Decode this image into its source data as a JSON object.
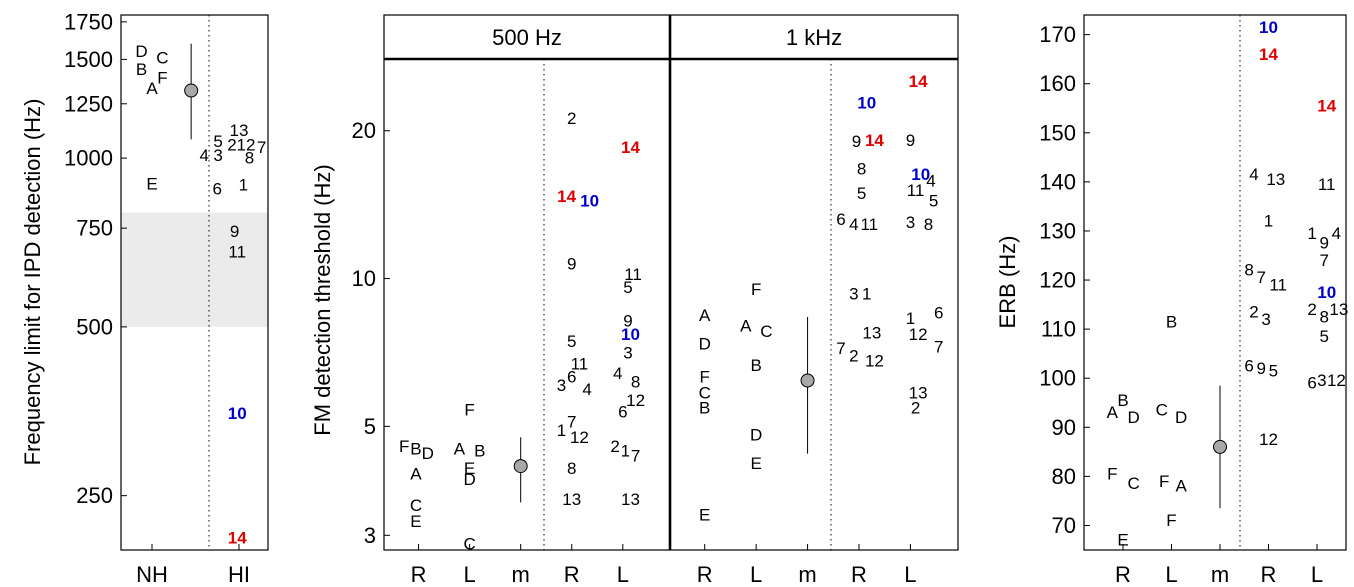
{
  "colors": {
    "black": "#000000",
    "blue": "#0000cc",
    "red": "#e00000",
    "band": "#ebebeb"
  },
  "chart_data": [
    {
      "type": "scatter",
      "ylabel": "Frequency limit for IPD detection (Hz)",
      "yscale": "log",
      "ylim": [
        200,
        1800
      ],
      "yticks": [
        250,
        500,
        750,
        1000,
        1250,
        1500,
        1750
      ],
      "categories": [
        "NH",
        "HI"
      ],
      "shaded_band": [
        500,
        800
      ],
      "points": [
        {
          "label": "D",
          "x": 0.88,
          "y": 1550
        },
        {
          "label": "C",
          "x": 1.12,
          "y": 1510
        },
        {
          "label": "B",
          "x": 0.88,
          "y": 1440
        },
        {
          "label": "F",
          "x": 1.12,
          "y": 1390
        },
        {
          "label": "A",
          "x": 1.0,
          "y": 1330
        },
        {
          "label": "E",
          "x": 1.0,
          "y": 900
        },
        {
          "label": "13",
          "x": 2.0,
          "y": 1120
        },
        {
          "label": "5",
          "x": 1.76,
          "y": 1070
        },
        {
          "label": "2",
          "x": 1.92,
          "y": 1055
        },
        {
          "label": "12",
          "x": 2.08,
          "y": 1055
        },
        {
          "label": "7",
          "x": 2.26,
          "y": 1045
        },
        {
          "label": "4",
          "x": 1.6,
          "y": 1010
        },
        {
          "label": "3",
          "x": 1.76,
          "y": 1010
        },
        {
          "label": "8",
          "x": 2.12,
          "y": 1000
        },
        {
          "label": "6",
          "x": 1.75,
          "y": 880
        },
        {
          "label": "1",
          "x": 2.05,
          "y": 895
        },
        {
          "label": "9",
          "x": 1.95,
          "y": 740
        },
        {
          "label": "11",
          "x": 1.98,
          "y": 680
        },
        {
          "label": "10",
          "x": 1.98,
          "y": 350,
          "color": "blue"
        },
        {
          "label": "14",
          "x": 1.98,
          "y": 210,
          "color": "red"
        }
      ],
      "mean": {
        "x": 1.45,
        "y": 1320,
        "lo": 1080,
        "hi": 1600
      }
    },
    {
      "type": "scatter",
      "ylabel": "FM detection threshold (Hz)",
      "yscale": "log",
      "ylim": [
        2.8,
        28
      ],
      "yticks": [
        3,
        5,
        10,
        20
      ],
      "panels": [
        {
          "title": "500 Hz",
          "categories": [
            "R",
            "L",
            "m",
            "R",
            "L"
          ],
          "points": [
            {
              "label": "F",
              "x": 0.72,
              "y": 4.55
            },
            {
              "label": "B",
              "x": 0.95,
              "y": 4.5
            },
            {
              "label": "D",
              "x": 1.18,
              "y": 4.4
            },
            {
              "label": "A",
              "x": 0.95,
              "y": 4.0
            },
            {
              "label": "C",
              "x": 0.95,
              "y": 3.45
            },
            {
              "label": "E",
              "x": 0.95,
              "y": 3.2
            },
            {
              "label": "F",
              "x": 2.0,
              "y": 5.4
            },
            {
              "label": "A",
              "x": 1.8,
              "y": 4.5
            },
            {
              "label": "B",
              "x": 2.2,
              "y": 4.45
            },
            {
              "label": "E",
              "x": 2.0,
              "y": 4.1
            },
            {
              "label": "D",
              "x": 2.0,
              "y": 3.9
            },
            {
              "label": "C",
              "x": 2.0,
              "y": 2.88
            },
            {
              "label": "2",
              "x": 4.0,
              "y": 21.2
            },
            {
              "label": "14",
              "x": 5.15,
              "y": 18.5,
              "color": "red"
            },
            {
              "label": "14",
              "x": 3.9,
              "y": 14.7,
              "color": "red"
            },
            {
              "label": "10",
              "x": 4.35,
              "y": 14.4,
              "color": "blue"
            },
            {
              "label": "9",
              "x": 4.0,
              "y": 10.7
            },
            {
              "label": "11",
              "x": 5.2,
              "y": 10.2
            },
            {
              "label": "5",
              "x": 5.1,
              "y": 9.6
            },
            {
              "label": "9",
              "x": 5.1,
              "y": 8.2
            },
            {
              "label": "10",
              "x": 5.15,
              "y": 7.7,
              "color": "blue"
            },
            {
              "label": "5",
              "x": 4.0,
              "y": 7.45
            },
            {
              "label": "11",
              "x": 4.15,
              "y": 6.7
            },
            {
              "label": "3",
              "x": 5.1,
              "y": 7.05
            },
            {
              "label": "6",
              "x": 4.0,
              "y": 6.3
            },
            {
              "label": "3",
              "x": 3.8,
              "y": 6.05
            },
            {
              "label": "4",
              "x": 4.3,
              "y": 5.95
            },
            {
              "label": "4",
              "x": 4.9,
              "y": 6.4
            },
            {
              "label": "8",
              "x": 5.25,
              "y": 6.15
            },
            {
              "label": "12",
              "x": 5.25,
              "y": 5.65
            },
            {
              "label": "6",
              "x": 5.0,
              "y": 5.35
            },
            {
              "label": "7",
              "x": 4.0,
              "y": 5.1
            },
            {
              "label": "1",
              "x": 3.8,
              "y": 4.9
            },
            {
              "label": "12",
              "x": 4.15,
              "y": 4.75
            },
            {
              "label": "2",
              "x": 4.85,
              "y": 4.55
            },
            {
              "label": "1",
              "x": 5.05,
              "y": 4.45
            },
            {
              "label": "7",
              "x": 5.25,
              "y": 4.35
            },
            {
              "label": "8",
              "x": 4.0,
              "y": 4.1
            },
            {
              "label": "13",
              "x": 4.0,
              "y": 3.55
            },
            {
              "label": "13",
              "x": 5.15,
              "y": 3.55
            }
          ],
          "mean": {
            "x": 3.0,
            "y": 4.15,
            "lo": 3.5,
            "hi": 4.75
          }
        },
        {
          "title": "1 kHz",
          "categories": [
            "R",
            "L",
            "m",
            "R",
            "L"
          ],
          "points": [
            {
              "label": "F",
              "x": 2.0,
              "y": 9.5
            },
            {
              "label": "A",
              "x": 1.0,
              "y": 8.4
            },
            {
              "label": "A",
              "x": 1.8,
              "y": 8.0
            },
            {
              "label": "C",
              "x": 2.2,
              "y": 7.8
            },
            {
              "label": "D",
              "x": 1.0,
              "y": 7.35
            },
            {
              "label": "B",
              "x": 2.0,
              "y": 6.65
            },
            {
              "label": "F",
              "x": 1.0,
              "y": 6.3
            },
            {
              "label": "C",
              "x": 1.0,
              "y": 5.85
            },
            {
              "label": "B",
              "x": 1.0,
              "y": 5.45
            },
            {
              "label": "D",
              "x": 2.0,
              "y": 4.8
            },
            {
              "label": "E",
              "x": 2.0,
              "y": 4.2
            },
            {
              "label": "E",
              "x": 1.0,
              "y": 3.3
            },
            {
              "label": "14",
              "x": 5.15,
              "y": 25.2,
              "color": "red"
            },
            {
              "label": "10",
              "x": 4.15,
              "y": 22.8,
              "color": "blue"
            },
            {
              "label": "9",
              "x": 3.95,
              "y": 19.0
            },
            {
              "label": "14",
              "x": 4.3,
              "y": 19.1,
              "color": "red"
            },
            {
              "label": "9",
              "x": 5.0,
              "y": 19.1
            },
            {
              "label": "8",
              "x": 4.05,
              "y": 16.7
            },
            {
              "label": "10",
              "x": 5.2,
              "y": 16.3,
              "color": "blue"
            },
            {
              "label": "4",
              "x": 5.4,
              "y": 15.8
            },
            {
              "label": "5",
              "x": 4.05,
              "y": 14.9
            },
            {
              "label": "11",
              "x": 5.1,
              "y": 15.1
            },
            {
              "label": "5",
              "x": 5.45,
              "y": 14.4
            },
            {
              "label": "6",
              "x": 3.65,
              "y": 13.2
            },
            {
              "label": "4",
              "x": 3.9,
              "y": 12.9
            },
            {
              "label": "11",
              "x": 4.2,
              "y": 12.9
            },
            {
              "label": "3",
              "x": 5.0,
              "y": 13.0
            },
            {
              "label": "8",
              "x": 5.35,
              "y": 12.9
            },
            {
              "label": "3",
              "x": 3.9,
              "y": 9.3
            },
            {
              "label": "1",
              "x": 4.15,
              "y": 9.3
            },
            {
              "label": "1",
              "x": 5.0,
              "y": 8.3
            },
            {
              "label": "6",
              "x": 5.55,
              "y": 8.5
            },
            {
              "label": "13",
              "x": 4.25,
              "y": 7.75
            },
            {
              "label": "12",
              "x": 5.15,
              "y": 7.7
            },
            {
              "label": "7",
              "x": 5.55,
              "y": 7.25
            },
            {
              "label": "7",
              "x": 3.65,
              "y": 7.2
            },
            {
              "label": "2",
              "x": 3.9,
              "y": 6.95
            },
            {
              "label": "12",
              "x": 4.3,
              "y": 6.8
            },
            {
              "label": "13",
              "x": 5.15,
              "y": 5.85
            },
            {
              "label": "2",
              "x": 5.1,
              "y": 5.45
            }
          ],
          "mean": {
            "x": 3.0,
            "y": 6.2,
            "lo": 4.4,
            "hi": 8.35
          }
        }
      ]
    },
    {
      "type": "scatter",
      "ylabel": "ERB (Hz)",
      "yscale": "linear",
      "ylim": [
        65,
        174
      ],
      "yticks": [
        70,
        80,
        90,
        100,
        110,
        120,
        130,
        140,
        150,
        160,
        170
      ],
      "categories": [
        "R",
        "L",
        "m",
        "R",
        "L"
      ],
      "points": [
        {
          "label": "B",
          "x": 1.0,
          "y": 95.5
        },
        {
          "label": "A",
          "x": 0.78,
          "y": 93.0
        },
        {
          "label": "D",
          "x": 1.22,
          "y": 92.0
        },
        {
          "label": "C",
          "x": 1.8,
          "y": 93.5
        },
        {
          "label": "D",
          "x": 2.2,
          "y": 92.0
        },
        {
          "label": "B",
          "x": 2.0,
          "y": 111.5
        },
        {
          "label": "F",
          "x": 0.78,
          "y": 80.5
        },
        {
          "label": "C",
          "x": 1.22,
          "y": 78.5
        },
        {
          "label": "F",
          "x": 1.85,
          "y": 79.0
        },
        {
          "label": "A",
          "x": 2.2,
          "y": 78.0
        },
        {
          "label": "F",
          "x": 2.0,
          "y": 71.0
        },
        {
          "label": "E",
          "x": 1.0,
          "y": 67.0
        },
        {
          "label": "10",
          "x": 4.0,
          "y": 171.5,
          "color": "blue"
        },
        {
          "label": "14",
          "x": 4.0,
          "y": 166.0,
          "color": "red"
        },
        {
          "label": "14",
          "x": 5.2,
          "y": 155.5,
          "color": "red"
        },
        {
          "label": "4",
          "x": 3.7,
          "y": 141.5
        },
        {
          "label": "13",
          "x": 4.15,
          "y": 140.5
        },
        {
          "label": "11",
          "x": 5.2,
          "y": 139.5
        },
        {
          "label": "1",
          "x": 4.0,
          "y": 132.0
        },
        {
          "label": "1",
          "x": 4.9,
          "y": 129.5
        },
        {
          "label": "9",
          "x": 5.15,
          "y": 127.5
        },
        {
          "label": "4",
          "x": 5.4,
          "y": 129.5
        },
        {
          "label": "7",
          "x": 5.15,
          "y": 124.0
        },
        {
          "label": "8",
          "x": 3.6,
          "y": 122.0
        },
        {
          "label": "7",
          "x": 3.85,
          "y": 120.5
        },
        {
          "label": "11",
          "x": 4.2,
          "y": 119.0
        },
        {
          "label": "10",
          "x": 5.2,
          "y": 117.5,
          "color": "blue"
        },
        {
          "label": "2",
          "x": 3.7,
          "y": 113.5
        },
        {
          "label": "3",
          "x": 3.95,
          "y": 112.0
        },
        {
          "label": "2",
          "x": 4.9,
          "y": 114.0
        },
        {
          "label": "8",
          "x": 5.15,
          "y": 112.5
        },
        {
          "label": "13",
          "x": 5.45,
          "y": 114.0
        },
        {
          "label": "5",
          "x": 5.15,
          "y": 108.5
        },
        {
          "label": "6",
          "x": 3.6,
          "y": 102.5
        },
        {
          "label": "9",
          "x": 3.85,
          "y": 102.0
        },
        {
          "label": "5",
          "x": 4.1,
          "y": 101.5
        },
        {
          "label": "6",
          "x": 4.9,
          "y": 99.0
        },
        {
          "label": "3",
          "x": 5.1,
          "y": 99.5
        },
        {
          "label": "12",
          "x": 5.4,
          "y": 99.5
        },
        {
          "label": "12",
          "x": 4.0,
          "y": 87.5
        }
      ],
      "mean": {
        "x": 3.0,
        "y": 86.0,
        "lo": 73.5,
        "hi": 98.5
      }
    }
  ]
}
